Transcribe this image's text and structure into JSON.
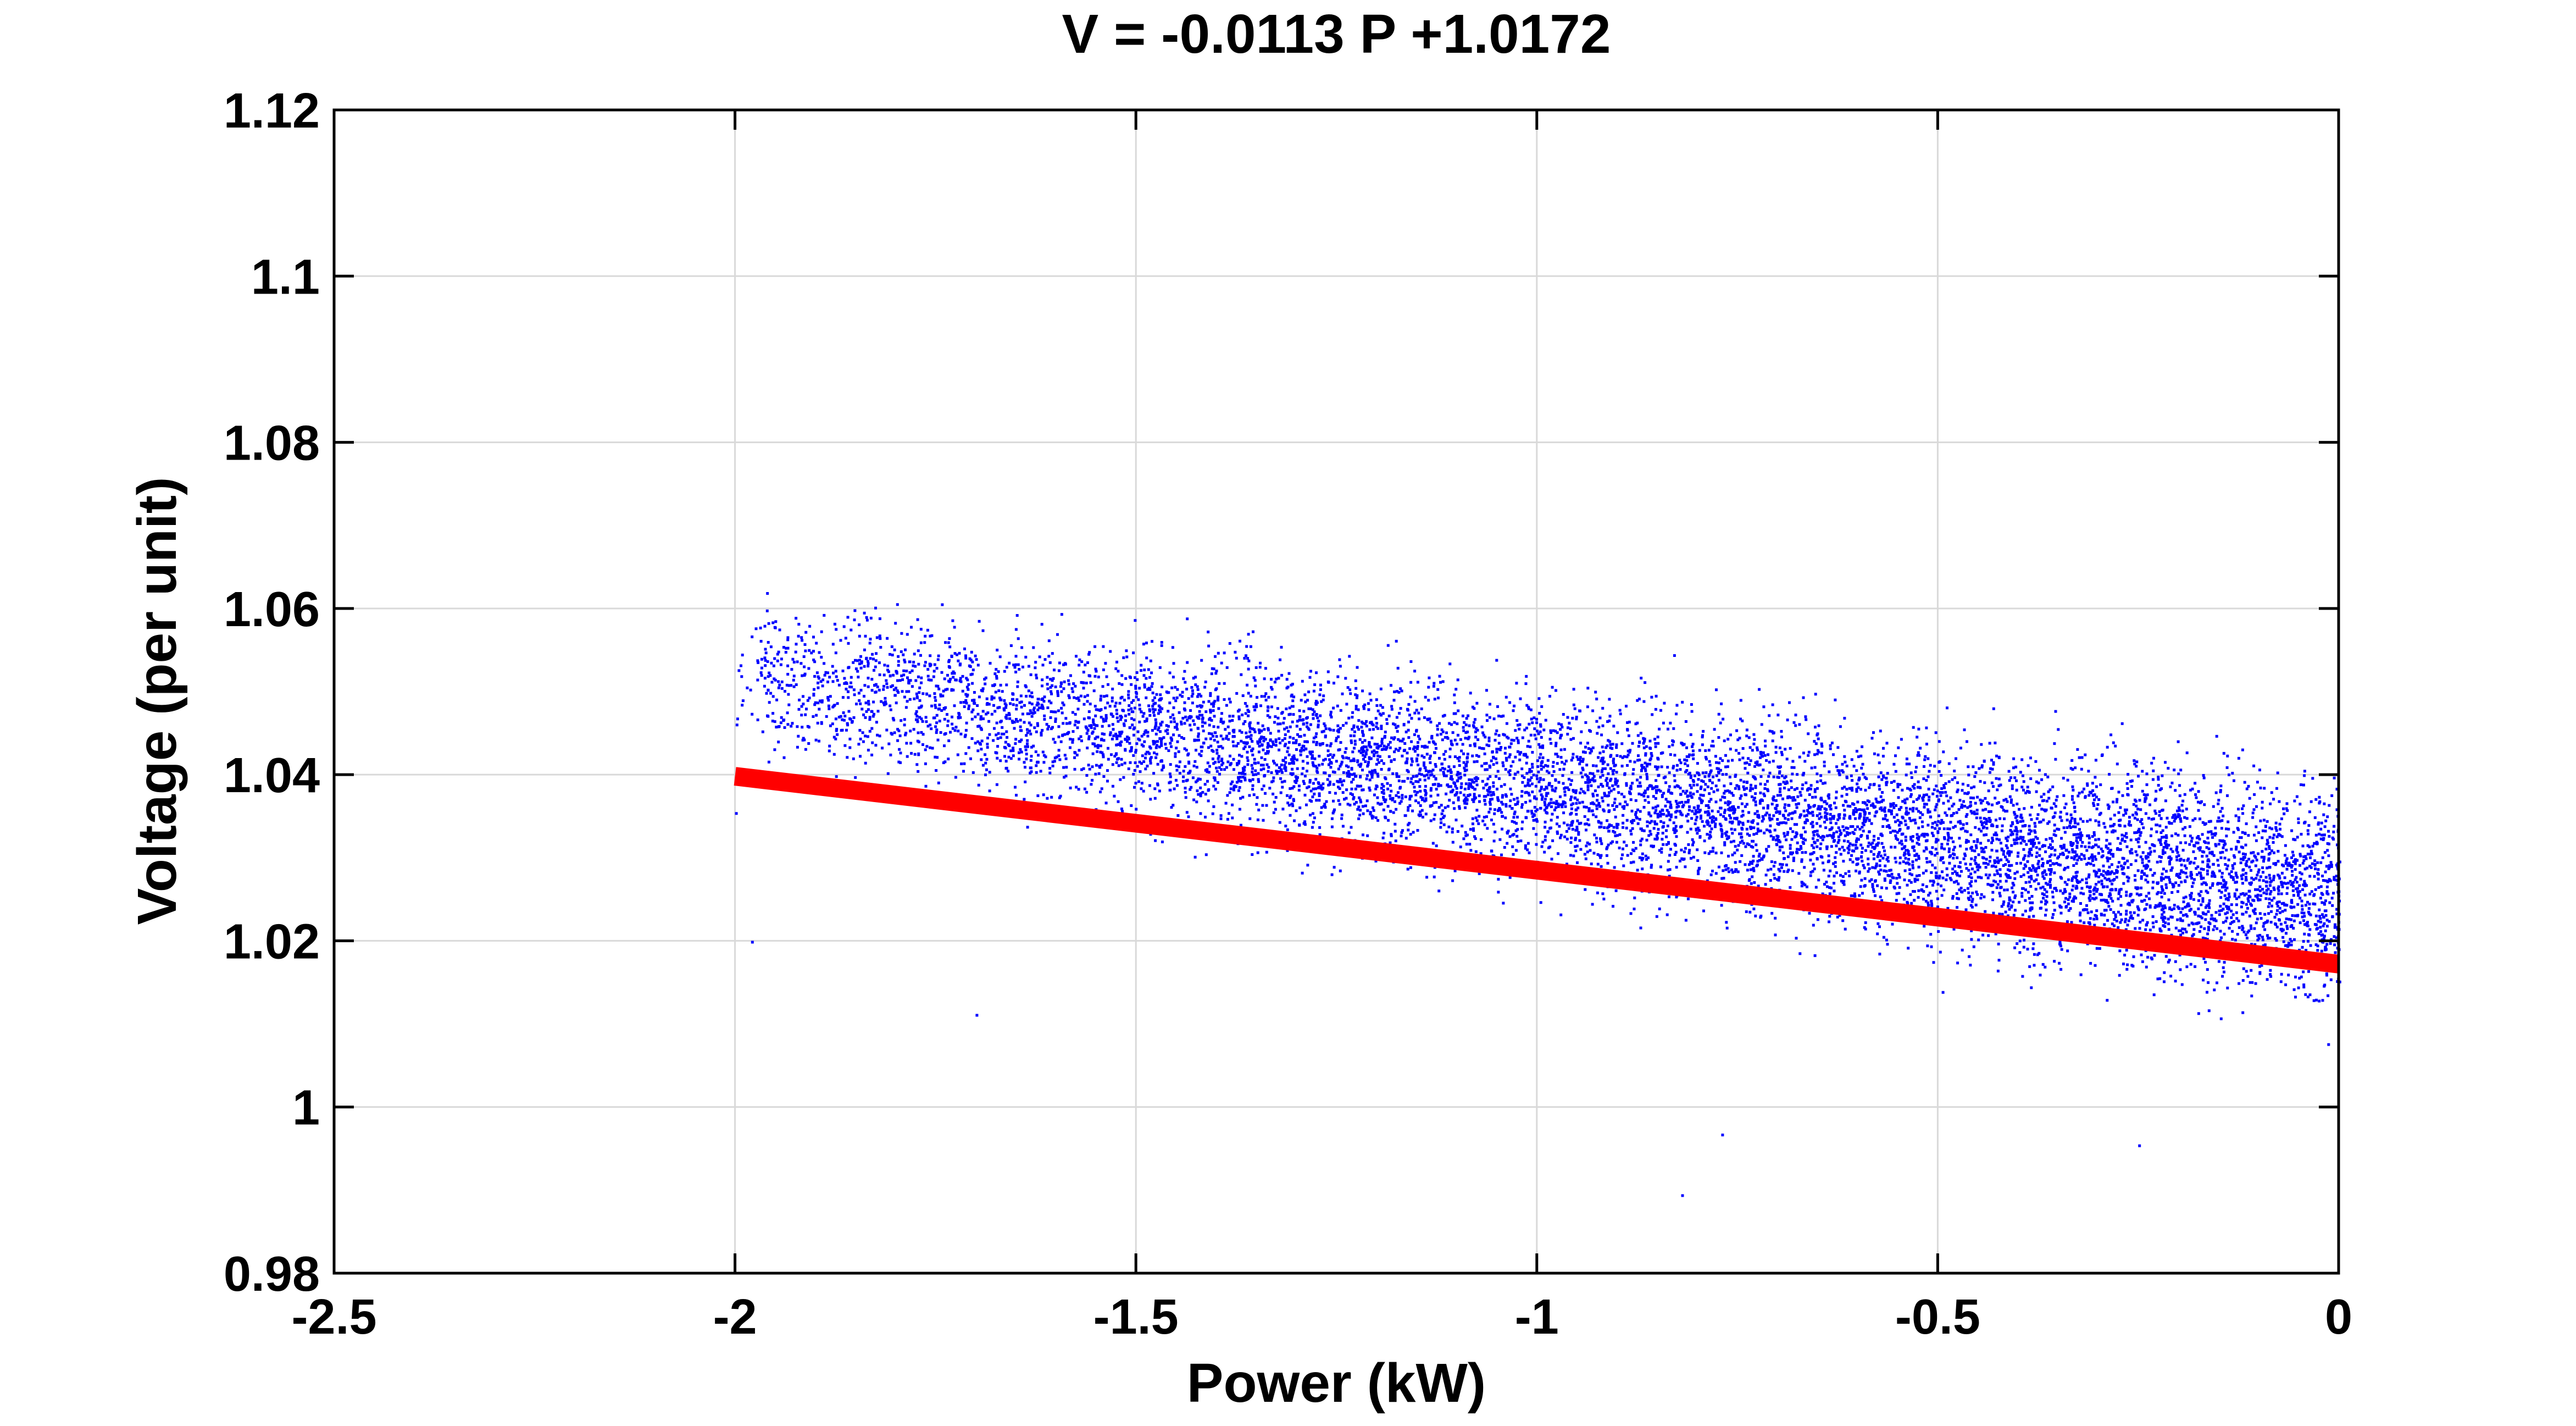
{
  "chart_data": {
    "type": "scatter",
    "title": "V = -0.0113 P +1.0172",
    "xlabel": "Power (kW)",
    "ylabel": "Voltage (per unit)",
    "xlim": [
      -2.5,
      0
    ],
    "ylim": [
      0.98,
      1.12
    ],
    "xticks": [
      -2.5,
      -2,
      -1.5,
      -1,
      -0.5,
      0
    ],
    "xtick_labels": [
      "-2.5",
      "-2",
      "-1.5",
      "-1",
      "-0.5",
      "0"
    ],
    "yticks": [
      0.98,
      1,
      1.02,
      1.04,
      1.06,
      1.08,
      1.1,
      1.12
    ],
    "ytick_labels": [
      "0.98",
      "1",
      "1.02",
      "1.04",
      "1.06",
      "1.08",
      "1.1",
      "1.12"
    ],
    "grid": true,
    "legend": "none",
    "scatter_cloud": {
      "color": "#0000ff",
      "x_range": [
        -2.0,
        0
      ],
      "center_line": {
        "slope": -0.0113,
        "intercept": 1.0296
      },
      "band_halfwidth_left": 0.008,
      "band_halfwidth_right": 0.011,
      "approx_points": 9000
    },
    "scatter_outliers": [
      {
        "x": -2.0,
        "y": 1.0355
      },
      {
        "x": -1.98,
        "y": 1.02
      },
      {
        "x": -1.88,
        "y": 1.0532
      },
      {
        "x": -1.7,
        "y": 1.0112
      },
      {
        "x": -1.5,
        "y": 1.0516
      },
      {
        "x": -0.82,
        "y": 0.9895
      },
      {
        "x": -0.83,
        "y": 1.0545
      },
      {
        "x": -0.77,
        "y": 0.9968
      },
      {
        "x": -0.49,
        "y": 1.0482
      },
      {
        "x": -0.25,
        "y": 0.9955
      }
    ],
    "fit_line": {
      "color": "#ff0000",
      "slope": -0.0113,
      "intercept": 1.0172,
      "x_range": [
        -2.0,
        0
      ]
    },
    "colors": {
      "points": "#0000ff",
      "fit": "#ff0000",
      "grid": "#d9d9d9",
      "axes": "#000000"
    }
  }
}
